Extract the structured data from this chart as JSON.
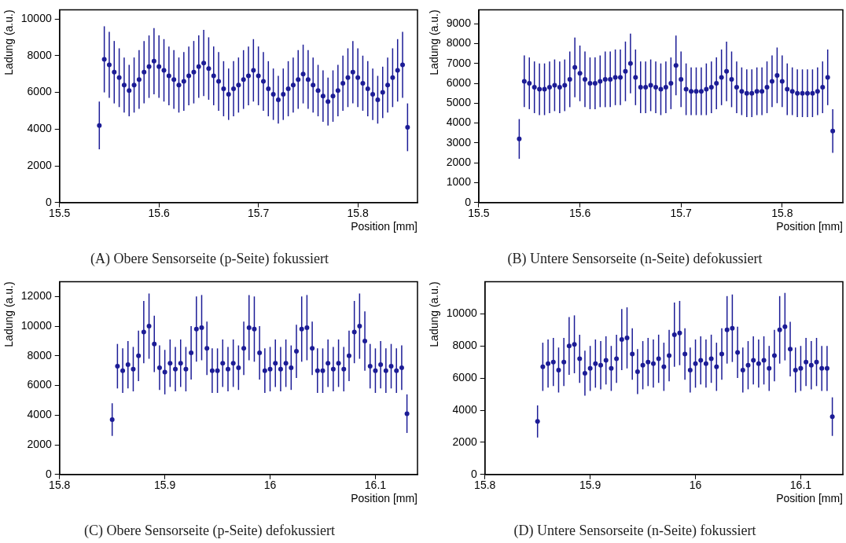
{
  "chart_data": [
    {
      "type": "scatter",
      "title": "(A) Obere Sensorseite (p-Seite) fokussiert",
      "xlabel": "Position [mm]",
      "ylabel": "Ladung (a.u.)",
      "xlim": [
        15.5,
        15.86
      ],
      "xticks": [
        15.5,
        15.6,
        15.7,
        15.8
      ],
      "ylim": [
        0,
        10500
      ],
      "yticks": [
        0,
        2000,
        4000,
        6000,
        8000,
        10000
      ],
      "grid": false,
      "legend": false,
      "marker": "circle",
      "series": [
        {
          "color": "#1c1c96",
          "x": [
            15.54,
            15.545,
            15.55,
            15.555,
            15.56,
            15.565,
            15.57,
            15.575,
            15.58,
            15.585,
            15.59,
            15.595,
            15.6,
            15.605,
            15.61,
            15.615,
            15.62,
            15.625,
            15.63,
            15.635,
            15.64,
            15.645,
            15.65,
            15.655,
            15.66,
            15.665,
            15.67,
            15.675,
            15.68,
            15.685,
            15.69,
            15.695,
            15.7,
            15.705,
            15.71,
            15.715,
            15.72,
            15.725,
            15.73,
            15.735,
            15.74,
            15.745,
            15.75,
            15.755,
            15.76,
            15.765,
            15.77,
            15.775,
            15.78,
            15.785,
            15.79,
            15.795,
            15.8,
            15.805,
            15.81,
            15.815,
            15.82,
            15.825,
            15.83,
            15.835,
            15.84,
            15.845,
            15.85
          ],
          "values": [
            4200,
            7800,
            7500,
            7100,
            6800,
            6400,
            6100,
            6400,
            6700,
            7100,
            7400,
            7700,
            7400,
            7200,
            6900,
            6700,
            6400,
            6600,
            6900,
            7100,
            7400,
            7600,
            7300,
            6900,
            6600,
            6200,
            5900,
            6200,
            6400,
            6700,
            6900,
            7200,
            6900,
            6600,
            6200,
            5900,
            5600,
            5900,
            6200,
            6400,
            6700,
            7000,
            6700,
            6400,
            6100,
            5800,
            5500,
            5800,
            6100,
            6500,
            6800,
            7100,
            6800,
            6500,
            6200,
            5900,
            5600,
            6000,
            6400,
            6800,
            7200,
            7500,
            4100
          ],
          "errors": [
            1300,
            1800,
            1800,
            1700,
            1600,
            1500,
            1400,
            1500,
            1600,
            1700,
            1700,
            1800,
            1700,
            1700,
            1600,
            1600,
            1500,
            1600,
            1600,
            1700,
            1700,
            1800,
            1700,
            1600,
            1600,
            1500,
            1400,
            1500,
            1500,
            1600,
            1600,
            1700,
            1600,
            1600,
            1500,
            1400,
            1300,
            1400,
            1500,
            1500,
            1600,
            1600,
            1600,
            1500,
            1400,
            1400,
            1300,
            1400,
            1400,
            1500,
            1600,
            1700,
            1600,
            1500,
            1500,
            1400,
            1300,
            1400,
            1500,
            1600,
            1700,
            1800,
            1300
          ]
        }
      ]
    },
    {
      "type": "scatter",
      "title": "(B) Untere Sensorseite (n-Seite) defokussiert",
      "xlabel": "Position [mm]",
      "ylabel": "Ladung (a.u.)",
      "xlim": [
        15.5,
        15.86
      ],
      "xticks": [
        15.5,
        15.6,
        15.7,
        15.8
      ],
      "ylim": [
        0,
        9700
      ],
      "yticks": [
        0,
        1000,
        2000,
        3000,
        4000,
        5000,
        6000,
        7000,
        8000,
        9000
      ],
      "grid": false,
      "legend": false,
      "marker": "circle",
      "series": [
        {
          "color": "#1c1c96",
          "x": [
            15.54,
            15.545,
            15.55,
            15.555,
            15.56,
            15.565,
            15.57,
            15.575,
            15.58,
            15.585,
            15.59,
            15.595,
            15.6,
            15.605,
            15.61,
            15.615,
            15.62,
            15.625,
            15.63,
            15.635,
            15.64,
            15.645,
            15.65,
            15.655,
            15.66,
            15.665,
            15.67,
            15.675,
            15.68,
            15.685,
            15.69,
            15.695,
            15.7,
            15.705,
            15.71,
            15.715,
            15.72,
            15.725,
            15.73,
            15.735,
            15.74,
            15.745,
            15.75,
            15.755,
            15.76,
            15.765,
            15.77,
            15.775,
            15.78,
            15.785,
            15.79,
            15.795,
            15.8,
            15.805,
            15.81,
            15.815,
            15.82,
            15.825,
            15.83,
            15.835,
            15.84,
            15.845,
            15.85
          ],
          "values": [
            3200,
            6100,
            6000,
            5800,
            5700,
            5700,
            5800,
            5900,
            5800,
            5900,
            6200,
            6800,
            6500,
            6200,
            6000,
            6000,
            6100,
            6200,
            6200,
            6300,
            6300,
            6600,
            7000,
            6300,
            5800,
            5800,
            5900,
            5800,
            5700,
            5800,
            6000,
            6900,
            6200,
            5700,
            5600,
            5600,
            5600,
            5700,
            5800,
            6000,
            6300,
            6600,
            6200,
            5800,
            5600,
            5500,
            5500,
            5600,
            5600,
            5800,
            6100,
            6400,
            6100,
            5700,
            5600,
            5500,
            5500,
            5500,
            5500,
            5600,
            5800,
            6300,
            3600
          ],
          "errors": [
            1000,
            1300,
            1300,
            1300,
            1300,
            1300,
            1300,
            1300,
            1300,
            1300,
            1400,
            1500,
            1400,
            1400,
            1300,
            1300,
            1300,
            1400,
            1400,
            1400,
            1400,
            1500,
            1500,
            1400,
            1300,
            1300,
            1300,
            1300,
            1300,
            1300,
            1300,
            1500,
            1400,
            1300,
            1200,
            1200,
            1200,
            1300,
            1300,
            1300,
            1400,
            1500,
            1400,
            1300,
            1200,
            1200,
            1200,
            1200,
            1200,
            1300,
            1300,
            1400,
            1300,
            1300,
            1200,
            1200,
            1200,
            1200,
            1200,
            1200,
            1300,
            1400,
            1100
          ]
        }
      ]
    },
    {
      "type": "scatter",
      "title": "(C) Obere Sensorseite (p-Seite) defokussiert",
      "xlabel": "Position [mm]",
      "ylabel": "Ladung (a.u.)",
      "xlim": [
        15.8,
        16.14
      ],
      "xticks": [
        15.8,
        15.9,
        16,
        16.1
      ],
      "ylim": [
        0,
        13000
      ],
      "yticks": [
        0,
        2000,
        4000,
        6000,
        8000,
        10000,
        12000
      ],
      "grid": false,
      "legend": false,
      "marker": "circle",
      "series": [
        {
          "color": "#1c1c96",
          "x": [
            15.85,
            15.855,
            15.86,
            15.865,
            15.87,
            15.875,
            15.88,
            15.885,
            15.89,
            15.895,
            15.9,
            15.905,
            15.91,
            15.915,
            15.92,
            15.925,
            15.93,
            15.935,
            15.94,
            15.945,
            15.95,
            15.955,
            15.96,
            15.965,
            15.97,
            15.975,
            15.98,
            15.985,
            15.99,
            15.995,
            16,
            16.005,
            16.01,
            16.015,
            16.02,
            16.025,
            16.03,
            16.035,
            16.04,
            16.045,
            16.05,
            16.055,
            16.06,
            16.065,
            16.07,
            16.075,
            16.08,
            16.085,
            16.09,
            16.095,
            16.1,
            16.105,
            16.11,
            16.115,
            16.12,
            16.125,
            16.13
          ],
          "values": [
            3700,
            7300,
            7000,
            7400,
            7100,
            8000,
            9600,
            10000,
            8800,
            7200,
            6900,
            7500,
            7100,
            7500,
            7100,
            8200,
            9800,
            9900,
            8500,
            7000,
            7000,
            7500,
            7100,
            7500,
            7200,
            8500,
            9900,
            9800,
            8200,
            7000,
            7100,
            7500,
            7100,
            7500,
            7200,
            8300,
            9800,
            9900,
            8500,
            7000,
            7000,
            7500,
            7100,
            7500,
            7100,
            8000,
            9600,
            10000,
            9000,
            7300,
            7000,
            7400,
            7000,
            7300,
            7000,
            7200,
            4100
          ],
          "errors": [
            1100,
            1500,
            1500,
            1600,
            1500,
            1700,
            2100,
            2200,
            1900,
            1500,
            1500,
            1600,
            1500,
            1600,
            1500,
            1800,
            2200,
            2200,
            1800,
            1500,
            1500,
            1600,
            1500,
            1600,
            1500,
            1800,
            2200,
            2200,
            1800,
            1500,
            1500,
            1600,
            1500,
            1600,
            1500,
            1800,
            2200,
            2200,
            1800,
            1500,
            1500,
            1600,
            1500,
            1600,
            1500,
            1700,
            2100,
            2200,
            2000,
            1500,
            1500,
            1600,
            1500,
            1500,
            1500,
            1500,
            1300
          ]
        }
      ]
    },
    {
      "type": "scatter",
      "title": "(D) Untere Sensorseite (n-Seite) fokussiert",
      "xlabel": "Position [mm]",
      "ylabel": "Ladung (a.u.)",
      "xlim": [
        15.8,
        16.14
      ],
      "xticks": [
        15.8,
        15.9,
        16,
        16.1
      ],
      "ylim": [
        0,
        12000
      ],
      "yticks": [
        0,
        2000,
        4000,
        6000,
        8000,
        10000
      ],
      "grid": false,
      "legend": false,
      "marker": "circle",
      "series": [
        {
          "color": "#1c1c96",
          "x": [
            15.85,
            15.855,
            15.86,
            15.865,
            15.87,
            15.875,
            15.88,
            15.885,
            15.89,
            15.895,
            15.9,
            15.905,
            15.91,
            15.915,
            15.92,
            15.925,
            15.93,
            15.935,
            15.94,
            15.945,
            15.95,
            15.955,
            15.96,
            15.965,
            15.97,
            15.975,
            15.98,
            15.985,
            15.99,
            15.995,
            16,
            16.005,
            16.01,
            16.015,
            16.02,
            16.025,
            16.03,
            16.035,
            16.04,
            16.045,
            16.05,
            16.055,
            16.06,
            16.065,
            16.07,
            16.075,
            16.08,
            16.085,
            16.09,
            16.095,
            16.1,
            16.105,
            16.11,
            16.115,
            16.12,
            16.125,
            16.13
          ],
          "values": [
            3300,
            6700,
            6900,
            7000,
            6500,
            7000,
            8000,
            8100,
            7200,
            6300,
            6600,
            6900,
            6800,
            7100,
            6600,
            7200,
            8400,
            8500,
            7500,
            6400,
            6800,
            7000,
            6900,
            7200,
            6700,
            7400,
            8700,
            8800,
            7500,
            6500,
            6900,
            7100,
            6900,
            7200,
            6700,
            7500,
            9000,
            9100,
            7600,
            6500,
            6800,
            7100,
            6900,
            7100,
            6600,
            7400,
            9000,
            9200,
            7800,
            6500,
            6600,
            7000,
            6800,
            7000,
            6600,
            6600,
            3600
          ],
          "errors": [
            1000,
            1500,
            1500,
            1500,
            1400,
            1500,
            1800,
            1800,
            1500,
            1400,
            1400,
            1500,
            1500,
            1500,
            1400,
            1500,
            1900,
            1900,
            1600,
            1400,
            1500,
            1500,
            1500,
            1500,
            1500,
            1600,
            2000,
            2000,
            1600,
            1400,
            1500,
            1500,
            1500,
            1500,
            1500,
            1600,
            2100,
            2100,
            1600,
            1400,
            1500,
            1500,
            1500,
            1500,
            1400,
            1600,
            2100,
            2100,
            1700,
            1400,
            1400,
            1500,
            1500,
            1500,
            1400,
            1400,
            1200
          ]
        }
      ]
    }
  ]
}
